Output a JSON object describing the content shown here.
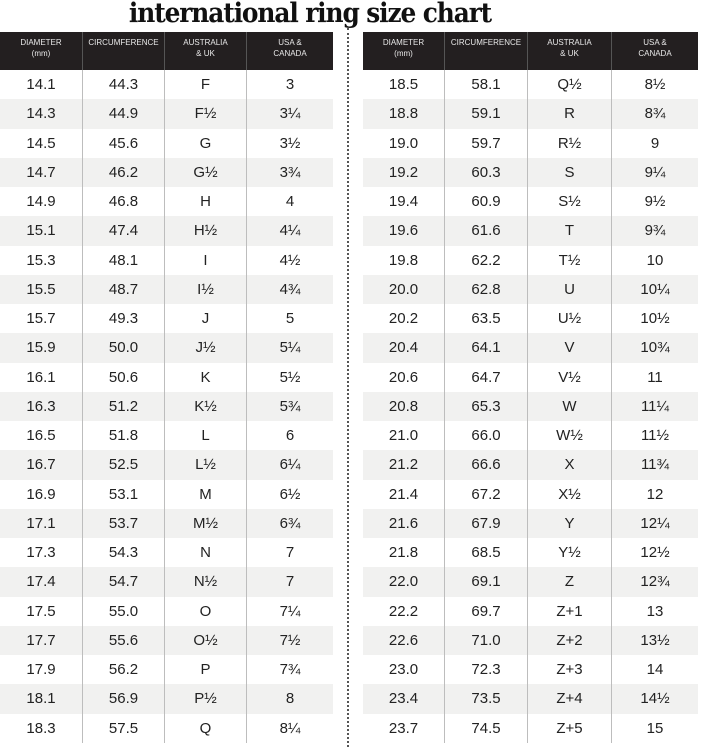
{
  "title": "international ring size chart",
  "headers": [
    "DIAMETER\n(mm)",
    "CIRCUMFERENCE",
    "AUSTRALIA\n& UK",
    "USA &\nCANADA"
  ],
  "left_rows": [
    [
      "14.1",
      "44.3",
      "F",
      "3"
    ],
    [
      "14.3",
      "44.9",
      "F½",
      "3¼"
    ],
    [
      "14.5",
      "45.6",
      "G",
      "3½"
    ],
    [
      "14.7",
      "46.2",
      "G½",
      "3¾"
    ],
    [
      "14.9",
      "46.8",
      "H",
      "4"
    ],
    [
      "15.1",
      "47.4",
      "H½",
      "4¼"
    ],
    [
      "15.3",
      "48.1",
      "I",
      "4½"
    ],
    [
      "15.5",
      "48.7",
      "I½",
      "4¾"
    ],
    [
      "15.7",
      "49.3",
      "J",
      "5"
    ],
    [
      "15.9",
      "50.0",
      "J½",
      "5¼"
    ],
    [
      "16.1",
      "50.6",
      "K",
      "5½"
    ],
    [
      "16.3",
      "51.2",
      "K½",
      "5¾"
    ],
    [
      "16.5",
      "51.8",
      "L",
      "6"
    ],
    [
      "16.7",
      "52.5",
      "L½",
      "6¼"
    ],
    [
      "16.9",
      "53.1",
      "M",
      "6½"
    ],
    [
      "17.1",
      "53.7",
      "M½",
      "6¾"
    ],
    [
      "17.3",
      "54.3",
      "N",
      "7"
    ],
    [
      "17.4",
      "54.7",
      "N½",
      "7"
    ],
    [
      "17.5",
      "55.0",
      "O",
      "7¼"
    ],
    [
      "17.7",
      "55.6",
      "O½",
      "7½"
    ],
    [
      "17.9",
      "56.2",
      "P",
      "7¾"
    ],
    [
      "18.1",
      "56.9",
      "P½",
      "8"
    ],
    [
      "18.3",
      "57.5",
      "Q",
      "8¼"
    ]
  ],
  "right_rows": [
    [
      "18.5",
      "58.1",
      "Q½",
      "8½"
    ],
    [
      "18.8",
      "59.1",
      "R",
      "8¾"
    ],
    [
      "19.0",
      "59.7",
      "R½",
      "9"
    ],
    [
      "19.2",
      "60.3",
      "S",
      "9¼"
    ],
    [
      "19.4",
      "60.9",
      "S½",
      "9½"
    ],
    [
      "19.6",
      "61.6",
      "T",
      "9¾"
    ],
    [
      "19.8",
      "62.2",
      "T½",
      "10"
    ],
    [
      "20.0",
      "62.8",
      "U",
      "10¼"
    ],
    [
      "20.2",
      "63.5",
      "U½",
      "10½"
    ],
    [
      "20.4",
      "64.1",
      "V",
      "10¾"
    ],
    [
      "20.6",
      "64.7",
      "V½",
      "11"
    ],
    [
      "20.8",
      "65.3",
      "W",
      "11¼"
    ],
    [
      "21.0",
      "66.0",
      "W½",
      "11½"
    ],
    [
      "21.2",
      "66.6",
      "X",
      "11¾"
    ],
    [
      "21.4",
      "67.2",
      "X½",
      "12"
    ],
    [
      "21.6",
      "67.9",
      "Y",
      "12¼"
    ],
    [
      "21.8",
      "68.5",
      "Y½",
      "12½"
    ],
    [
      "22.0",
      "69.1",
      "Z",
      "12¾"
    ],
    [
      "22.2",
      "69.7",
      "Z+1",
      "13"
    ],
    [
      "22.6",
      "71.0",
      "Z+2",
      "13½"
    ],
    [
      "23.0",
      "72.3",
      "Z+3",
      "14"
    ],
    [
      "23.4",
      "73.5",
      "Z+4",
      "14½"
    ],
    [
      "23.7",
      "74.5",
      "Z+5",
      "15"
    ]
  ]
}
